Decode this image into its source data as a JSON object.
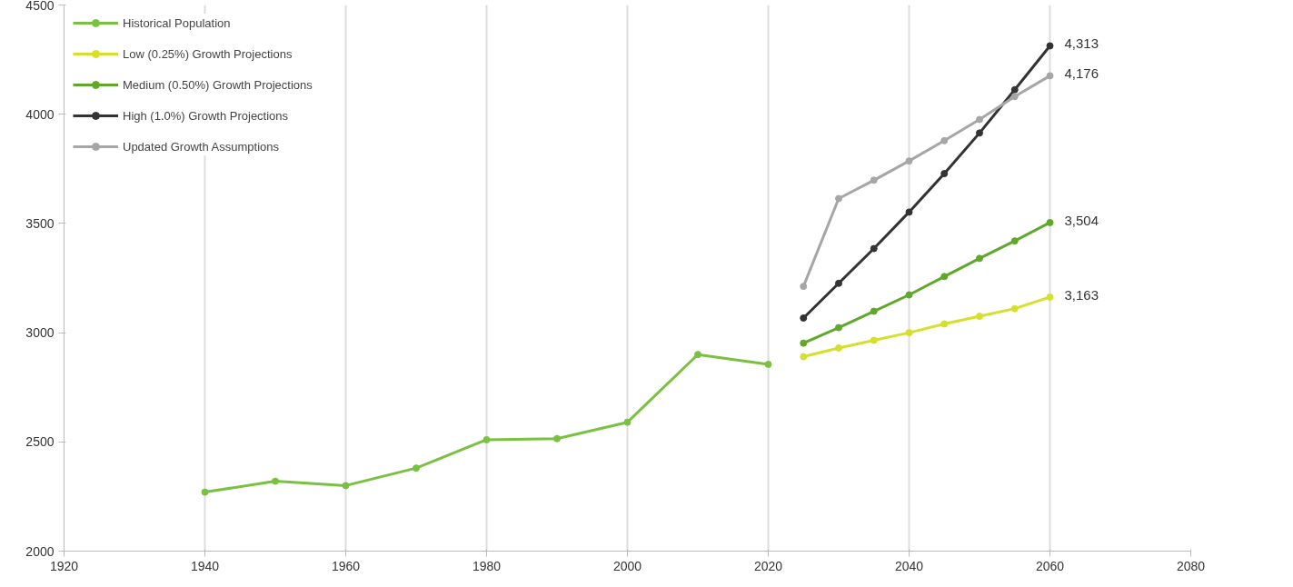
{
  "chart_data": {
    "type": "line",
    "xlim": [
      1920,
      2080
    ],
    "xticks": [
      1920,
      1940,
      1960,
      1980,
      2000,
      2020,
      2040,
      2060,
      2080
    ],
    "ylim": [
      2000,
      4500
    ],
    "yticks": [
      2000,
      2500,
      3000,
      3500,
      4000,
      4500
    ],
    "grid": "x",
    "legend": "top left",
    "marker": "circle",
    "series": [
      {
        "name": "Historical Population",
        "color": "#7ac142",
        "x": [
          1940,
          1950,
          1960,
          1970,
          1980,
          1990,
          2000,
          2010,
          2020
        ],
        "values": [
          2270,
          2320,
          2300,
          2380,
          2510,
          2515,
          2590,
          2900,
          2855
        ]
      },
      {
        "name": "Low (0.25%) Growth Projections",
        "color": "#d4e02a",
        "x": [
          2025,
          2030,
          2035,
          2040,
          2045,
          2050,
          2055,
          2060
        ],
        "values": [
          2890,
          2930,
          2965,
          3000,
          3040,
          3075,
          3110,
          3163
        ],
        "value_labels": [
          null,
          null,
          null,
          null,
          null,
          null,
          null,
          "3,163"
        ]
      },
      {
        "name": "Medium (0.50%) Growth Projections",
        "color": "#5fa82a",
        "x": [
          2025,
          2030,
          2035,
          2040,
          2045,
          2050,
          2055,
          2060
        ],
        "values": [
          2952,
          3023,
          3098,
          3173,
          3257,
          3340,
          3420,
          3504
        ],
        "value_labels": [
          null,
          null,
          null,
          null,
          null,
          null,
          null,
          "3,504"
        ]
      },
      {
        "name": "High (1.0%) Growth Projections",
        "color": "#333333",
        "x": [
          2025,
          2030,
          2035,
          2040,
          2045,
          2050,
          2055,
          2060
        ],
        "values": [
          3067,
          3226,
          3385,
          3552,
          3728,
          3914,
          4112,
          4313
        ],
        "value_labels": [
          null,
          null,
          null,
          null,
          null,
          null,
          null,
          "4,313"
        ]
      },
      {
        "name": "Updated Growth Assumptions",
        "color": "#a6a6a6",
        "x": [
          2025,
          2030,
          2035,
          2040,
          2045,
          2050,
          2055,
          2060
        ],
        "values": [
          3212,
          3614,
          3698,
          3786,
          3879,
          3976,
          4081,
          4176
        ],
        "value_labels": [
          null,
          null,
          null,
          null,
          null,
          null,
          null,
          "4,176"
        ]
      }
    ]
  }
}
